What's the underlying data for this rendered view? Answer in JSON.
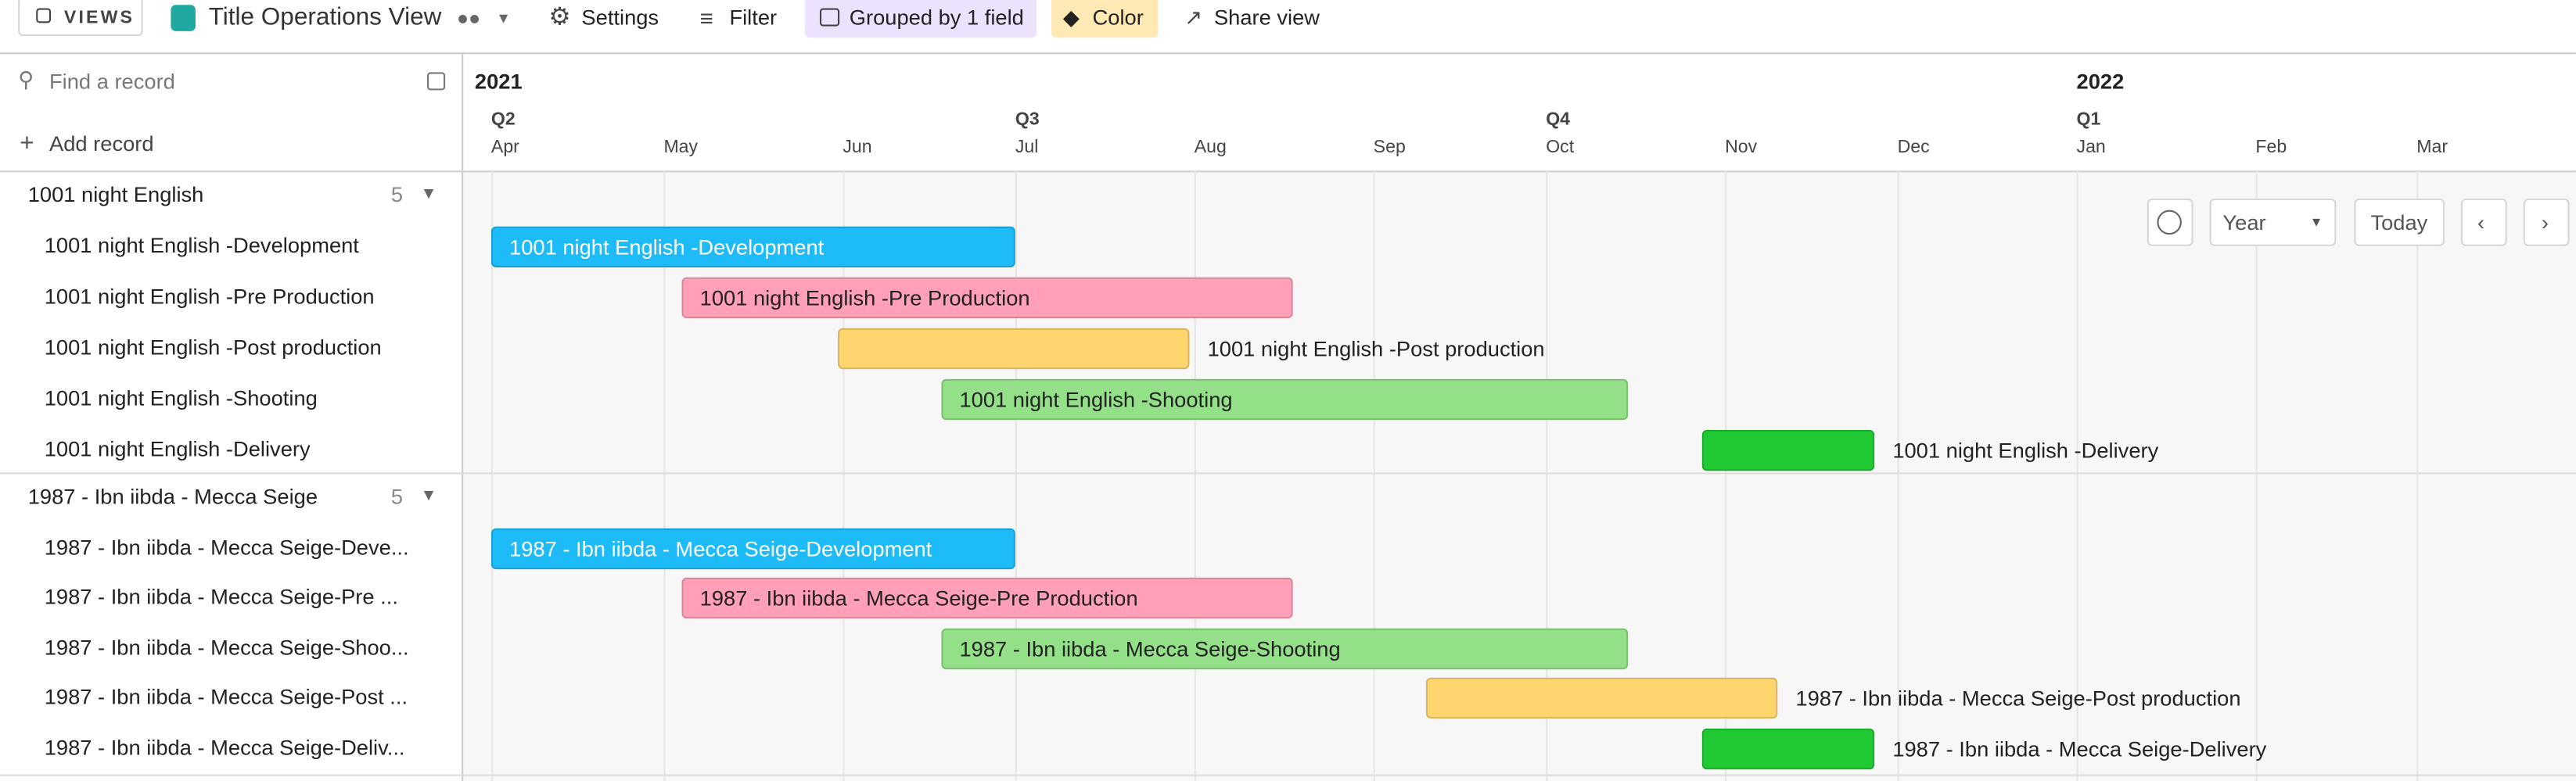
{
  "toolbar": {
    "views": "VIEWS",
    "view_name": "Title Operations View",
    "settings": "Settings",
    "filter": "Filter",
    "grouped": "Grouped by 1 field",
    "color": "Color",
    "share": "Share view"
  },
  "sidebar": {
    "search": "Find a record",
    "add": "Add record"
  },
  "timeline": {
    "years": [
      "2021",
      "2022"
    ],
    "quarters": [
      "Q2",
      "Q3",
      "Q4",
      "Q1"
    ],
    "months": [
      "Apr",
      "May",
      "Jun",
      "Jul",
      "Aug",
      "Sep",
      "Oct",
      "Nov",
      "Dec",
      "Jan",
      "Feb",
      "Mar"
    ],
    "controls": {
      "scale": "Year",
      "today": "Today"
    }
  },
  "groups": [
    {
      "name": "1001 night English",
      "count": 5,
      "records": [
        {
          "name": "1001 night English -Development",
          "bar_label": "1001 night English -Development",
          "color": "#1dbcf8"
        },
        {
          "name": "1001 night English -Pre Production",
          "bar_label": "1001 night English -Pre Production",
          "color": "#ffa0b8"
        },
        {
          "name": "1001 night English -Post production",
          "bar_label": "1001 night English -Post production",
          "color": "#ffd66e"
        },
        {
          "name": "1001 night English -Shooting",
          "bar_label": "1001 night English -Shooting",
          "color": "#93e088"
        },
        {
          "name": "1001 night English -Delivery",
          "bar_label": "1001 night English -Delivery",
          "color": "#20c933"
        }
      ]
    },
    {
      "name": "1987 - Ibn iibda - Mecca Seige",
      "count": 5,
      "records": [
        {
          "name": "1987 - Ibn iibda - Mecca Seige-Deve...",
          "bar_label": "1987 - Ibn iibda - Mecca Seige-Development",
          "color": "#1dbcf8"
        },
        {
          "name": "1987 - Ibn iibda - Mecca Seige-Pre ...",
          "bar_label": "1987 - Ibn iibda - Mecca Seige-Pre Production",
          "color": "#ffa0b8"
        },
        {
          "name": "1987 - Ibn iibda - Mecca Seige-Shoo...",
          "bar_label": "1987 - Ibn iibda - Mecca Seige-Shooting",
          "color": "#93e088"
        },
        {
          "name": "1987 - Ibn iibda - Mecca Seige-Post ...",
          "bar_label": "1987 - Ibn iibda - Mecca Seige-Post production",
          "color": "#ffd66e"
        },
        {
          "name": "1987 - Ibn iibda - Mecca Seige-Deliv...",
          "bar_label": "1987 - Ibn iibda - Mecca Seige-Delivery",
          "color": "#20c933"
        }
      ]
    }
  ]
}
